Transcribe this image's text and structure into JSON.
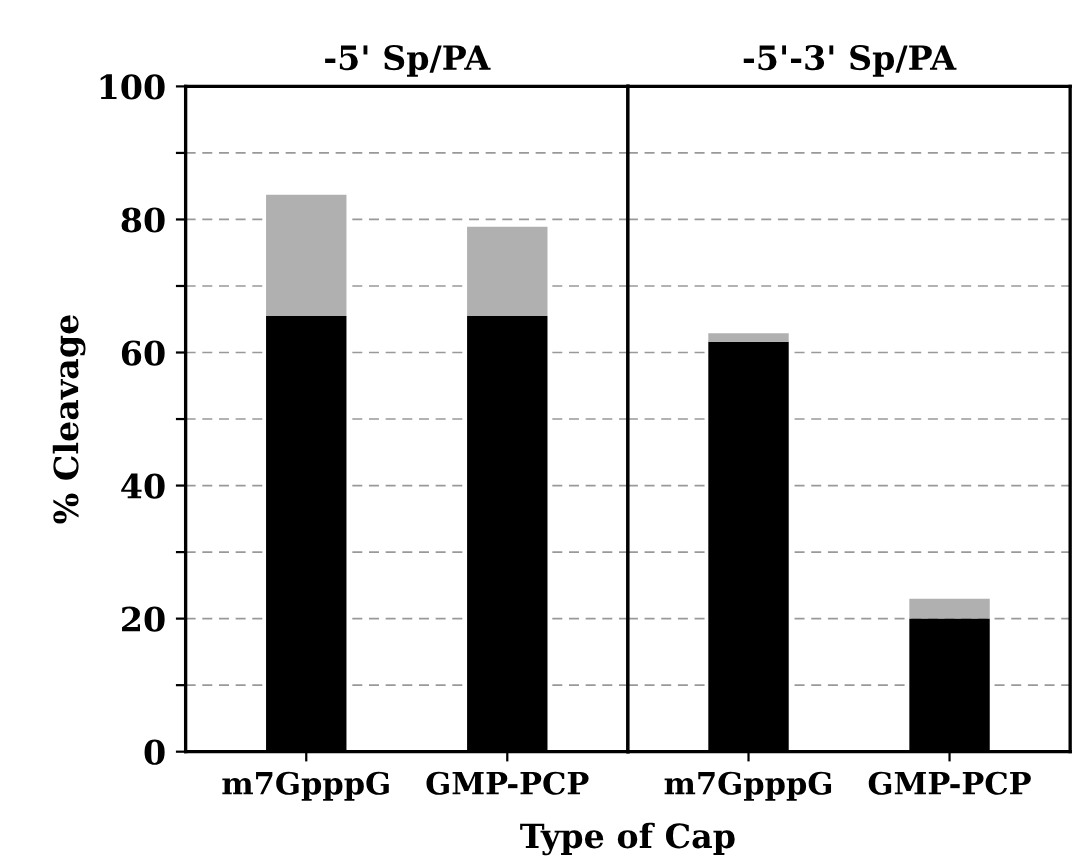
{
  "chart_data": [
    {
      "type": "bar",
      "title": "-5' Sp/PA",
      "ylabel": "% Cleavage",
      "xlabel": "Type of Cap",
      "categories": [
        "m7GpppG",
        "GMP-PCP"
      ],
      "stacked": true,
      "series": [
        {
          "color": "#000000",
          "values": [
            65.5,
            65.5
          ]
        },
        {
          "color": "#b0b0b0",
          "values": [
            18.2,
            13.4
          ]
        }
      ],
      "ylim": [
        0,
        100
      ],
      "yticks": [
        0,
        {
          "value": 10,
          "label": null
        },
        20,
        {
          "value": 30,
          "label": null
        },
        40,
        {
          "value": 50,
          "label": null
        },
        60,
        {
          "value": 70,
          "label": null
        },
        80,
        {
          "value": 90,
          "label": null
        },
        100
      ],
      "grid": "y"
    },
    {
      "type": "bar",
      "title": "-5'-3' Sp/PA",
      "categories": [
        "m7GpppG",
        "GMP-PCP"
      ],
      "stacked": true,
      "series": [
        {
          "color": "#000000",
          "values": [
            61.6,
            20.0
          ]
        },
        {
          "color": "#b0b0b0",
          "values": [
            1.3,
            3.0
          ]
        }
      ],
      "ylim": [
        0,
        100
      ],
      "tick_labels": "x",
      "grid": "y"
    }
  ]
}
